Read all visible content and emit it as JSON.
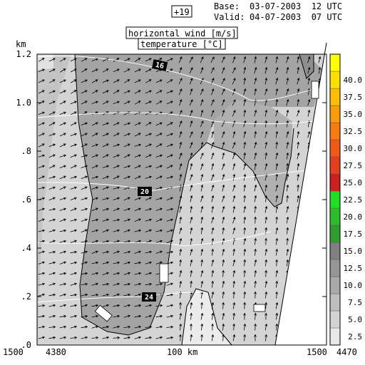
{
  "header": {
    "forecast_step": "+19",
    "base_label": "Base:",
    "base_value": "03-07-2003  12 UTC",
    "valid_label": "Valid:",
    "valid_value": "04-07-2003  07 UTC"
  },
  "chart_data": {
    "type": "heatmap",
    "title": "horizontal wind [m/s]",
    "subtitle": "temperature [°C]",
    "ylabel": "km",
    "ylim": [
      0,
      1.2
    ],
    "y_ticks": [
      {
        "value": 0,
        "label": ".0"
      },
      {
        "value": 0.2,
        "label": ".2"
      },
      {
        "value": 0.4,
        "label": ".4"
      },
      {
        "value": 0.6,
        "label": ".6"
      },
      {
        "value": 0.8,
        "label": ".8"
      },
      {
        "value": 1.0,
        "label": "1.0"
      },
      {
        "value": 1.2,
        "label": "1.2"
      }
    ],
    "x_labels": {
      "left_outer": "1500",
      "left_inner": "4380",
      "center": "100 km",
      "right_inner": "1500",
      "right_outer": "4470"
    },
    "wind_speed_levels": [
      {
        "value": "2.5",
        "color": "#e8e8e8"
      },
      {
        "value": "5.0",
        "color": "#d3d3d3"
      },
      {
        "value": "7.5",
        "color": "#bebebe"
      },
      {
        "value": "10.0",
        "color": "#a9a9a9"
      },
      {
        "value": "12.5",
        "color": "#969696"
      },
      {
        "value": "15.0",
        "color": "#808080"
      },
      {
        "value": "17.5",
        "color": "#2e9e2e"
      },
      {
        "value": "20.0",
        "color": "#2cbf2c"
      },
      {
        "value": "22.5",
        "color": "#22dd22"
      },
      {
        "value": "25.0",
        "color": "#cc2020"
      },
      {
        "value": "27.5",
        "color": "#e24020"
      },
      {
        "value": "30.0",
        "color": "#f05a16"
      },
      {
        "value": "32.5",
        "color": "#f57c12"
      },
      {
        "value": "35.0",
        "color": "#f89c0e"
      },
      {
        "value": "37.5",
        "color": "#fbbd08"
      },
      {
        "value": "40.0",
        "color": "#fde000"
      },
      {
        "value": "",
        "color": "#ffff00"
      }
    ],
    "temperature_contour_labels": [
      {
        "label": "16",
        "height_km": 1.18
      },
      {
        "label": "20",
        "height_km": 0.62
      },
      {
        "label": "24",
        "height_km": 0.2
      }
    ]
  }
}
